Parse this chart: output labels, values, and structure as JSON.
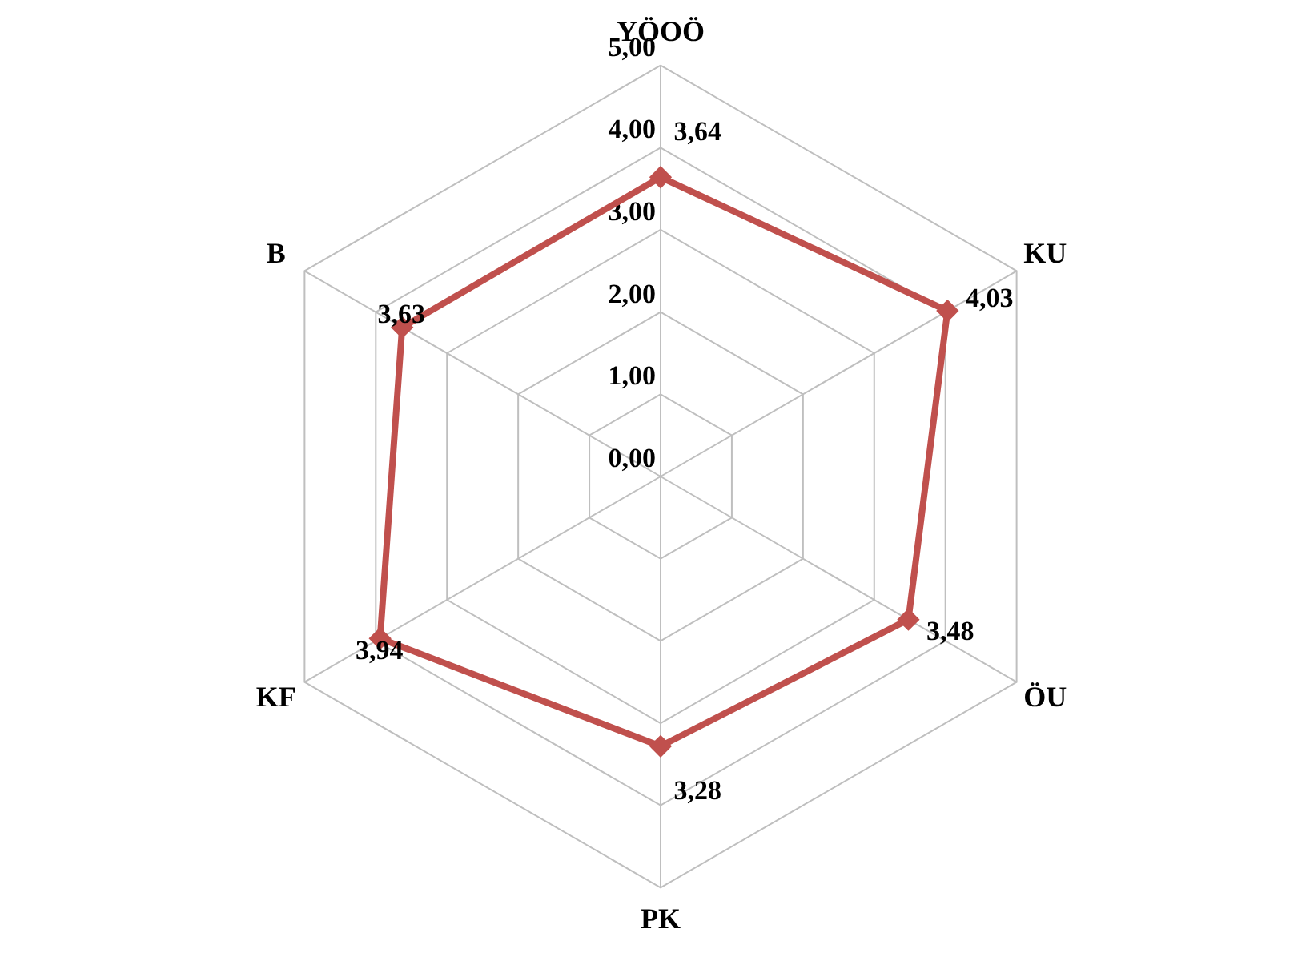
{
  "chart_data": {
    "type": "radar",
    "categories": [
      "YÖOÖ",
      "KU",
      "ÖU",
      "PK",
      "KF",
      "B"
    ],
    "series": [
      {
        "color": "#c0504d",
        "values": [
          3.64,
          4.03,
          3.48,
          3.28,
          3.94,
          3.63
        ],
        "value_labels": [
          "3,64",
          "4,03",
          "3,48",
          "3,28",
          "3,94",
          "3,63"
        ]
      }
    ],
    "ylim": [
      0,
      5
    ],
    "yticks": [
      {
        "value": 0,
        "label": "0,00"
      },
      {
        "value": 1,
        "label": "1,00"
      },
      {
        "value": 2,
        "label": "2,00"
      },
      {
        "value": 3,
        "label": "3,00"
      },
      {
        "value": 4,
        "label": "4,00"
      },
      {
        "value": 5,
        "label": "5,00"
      }
    ],
    "marker": "diamond",
    "grid": true
  }
}
